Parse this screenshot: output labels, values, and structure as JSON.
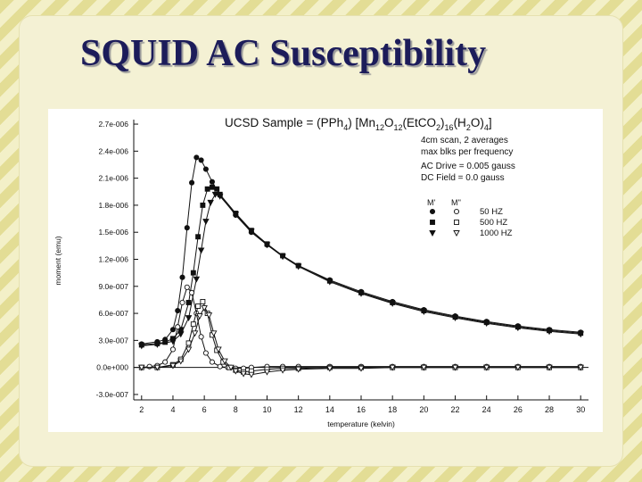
{
  "slide": {
    "title": "SQUID AC Susceptibility"
  },
  "chart_data": {
    "type": "line",
    "title": "UCSD Sample = (PPh4) [Mn12O12(EtCO2)16(H2O)4]",
    "title_parts": [
      "UCSD Sample = (PPh",
      "4",
      ") [Mn",
      "12",
      "O",
      "12",
      "(EtCO",
      "2",
      ")",
      "16",
      "(H",
      "2",
      "O)",
      "4",
      "]"
    ],
    "annotations": [
      "4cm scan, 2 averages",
      "max blks per frequency",
      "AC Drive = 0.005 gauss",
      "DC Field = 0.0 gauss"
    ],
    "legend_headers": [
      "M'",
      "M''"
    ],
    "legend_placement": "right",
    "xlabel": "temperature (kelvin)",
    "ylabel": "moment (emu)",
    "xlim": [
      1.5,
      30.5
    ],
    "ylim": [
      -3.6e-07,
      2.75e-06
    ],
    "x_ticks": [
      2,
      4,
      6,
      8,
      10,
      12,
      14,
      16,
      18,
      20,
      22,
      24,
      26,
      28,
      30
    ],
    "x_tick_labels": [
      "2",
      "4",
      "6",
      "8",
      "10",
      "12",
      "14",
      "16",
      "18",
      "20",
      "22",
      "24",
      "26",
      "28",
      "30"
    ],
    "y_ticks": [
      2.7e-06,
      2.4e-06,
      2.1e-06,
      1.8e-06,
      1.5e-06,
      1.2e-06,
      9e-07,
      6e-07,
      3e-07,
      0,
      -3e-07
    ],
    "y_tick_labels": [
      "2.7e-006",
      "2.4e-006",
      "2.1e-006",
      "1.8e-006",
      "1.5e-006",
      "1.2e-006",
      "9.0e-007",
      "6.0e-007",
      "3.0e-007",
      "0.0e+000",
      "-3.0e-007"
    ],
    "grid": false,
    "series": [
      {
        "name": "50 HZ",
        "component": "M'",
        "marker": "filled-circle",
        "x": [
          2,
          3,
          3.5,
          4,
          4.3,
          4.6,
          4.9,
          5.2,
          5.5,
          5.8,
          6.1,
          6.5,
          7,
          8,
          9,
          10,
          11,
          12,
          14,
          16,
          18,
          20,
          22,
          24,
          26,
          28,
          30
        ],
        "y": [
          2.6e-07,
          2.85e-07,
          3.1e-07,
          4.2e-07,
          6.3e-07,
          1e-06,
          1.55e-06,
          2.05e-06,
          2.33e-06,
          2.3e-06,
          2.2e-06,
          2.06e-06,
          1.91e-06,
          1.69e-06,
          1.5e-06,
          1.36e-06,
          1.24e-06,
          1.13e-06,
          9.7e-07,
          8.4e-07,
          7.3e-07,
          6.4e-07,
          5.7e-07,
          5.1e-07,
          4.6e-07,
          4.2e-07,
          3.9e-07
        ]
      },
      {
        "name": "500 HZ",
        "component": "M'",
        "marker": "filled-square",
        "x": [
          2,
          3,
          3.5,
          4,
          4.5,
          5,
          5.3,
          5.6,
          5.9,
          6.2,
          6.5,
          6.8,
          7,
          8,
          9,
          10,
          11,
          12,
          14,
          16,
          18,
          20,
          22,
          24,
          26,
          28,
          30
        ],
        "y": [
          2.5e-07,
          2.65e-07,
          2.8e-07,
          3.2e-07,
          4.2e-07,
          7.2e-07,
          1.05e-06,
          1.45e-06,
          1.8e-06,
          1.98e-06,
          2e-06,
          1.98e-06,
          1.92e-06,
          1.71e-06,
          1.52e-06,
          1.37e-06,
          1.24e-06,
          1.13e-06,
          9.6e-07,
          8.3e-07,
          7.2e-07,
          6.3e-07,
          5.6e-07,
          5e-07,
          4.5e-07,
          4.1e-07,
          3.8e-07
        ]
      },
      {
        "name": "1000 HZ",
        "component": "M'",
        "marker": "filled-triangle",
        "x": [
          2,
          3,
          4,
          4.5,
          5,
          5.5,
          5.8,
          6.1,
          6.4,
          6.7,
          7,
          8,
          9,
          10,
          11,
          12,
          14,
          16,
          18,
          20,
          22,
          24,
          26,
          28,
          30
        ],
        "y": [
          2.4e-07,
          2.55e-07,
          2.9e-07,
          3.7e-07,
          5.5e-07,
          9.8e-07,
          1.3e-06,
          1.62e-06,
          1.83e-06,
          1.92e-06,
          1.9e-06,
          1.7e-06,
          1.51e-06,
          1.36e-06,
          1.23e-06,
          1.12e-06,
          9.5e-07,
          8.2e-07,
          7.1e-07,
          6.2e-07,
          5.5e-07,
          4.9e-07,
          4.4e-07,
          4e-07,
          3.7e-07
        ]
      },
      {
        "name": "50 HZ",
        "component": "M''",
        "marker": "open-circle",
        "x": [
          2,
          2.5,
          3,
          3.5,
          4,
          4.3,
          4.6,
          4.9,
          5.2,
          5.5,
          5.8,
          6.1,
          6.5,
          7,
          7.5,
          8,
          8.5,
          9,
          10,
          11,
          12,
          14,
          16,
          18,
          20,
          22,
          24,
          26,
          28,
          30
        ],
        "y": [
          0,
          1e-08,
          2e-08,
          6e-08,
          2e-07,
          4.5e-07,
          7.2e-07,
          8.9e-07,
          8.3e-07,
          6e-07,
          3.4e-07,
          1.6e-07,
          6e-08,
          1e-08,
          0,
          -1e-08,
          -1e-08,
          0,
          1e-08,
          1e-08,
          1e-08,
          1e-08,
          1e-08,
          1e-08,
          1e-08,
          1e-08,
          1e-08,
          1e-08,
          1e-08,
          1e-08
        ]
      },
      {
        "name": "500 HZ",
        "component": "M''",
        "marker": "open-square",
        "x": [
          2,
          3,
          4,
          4.5,
          5,
          5.3,
          5.6,
          5.9,
          6.2,
          6.5,
          6.8,
          7.2,
          7.6,
          8,
          8.5,
          9,
          10,
          11,
          12,
          14,
          16,
          18,
          20,
          22,
          24,
          26,
          28,
          30
        ],
        "y": [
          0,
          0,
          3e-08,
          9e-08,
          2.7e-07,
          4.8e-07,
          6.8e-07,
          7.3e-07,
          6e-07,
          3.6e-07,
          1.9e-07,
          6e-08,
          0,
          -3e-08,
          -5e-08,
          -4e-08,
          -2e-08,
          -1e-08,
          -1e-08,
          0,
          0,
          0,
          0,
          0,
          0,
          0,
          0,
          0
        ]
      },
      {
        "name": "1000 HZ",
        "component": "M''",
        "marker": "open-triangle",
        "x": [
          2,
          3,
          4,
          4.5,
          5,
          5.4,
          5.7,
          6,
          6.3,
          6.6,
          6.9,
          7.3,
          7.7,
          8,
          8.5,
          9,
          10,
          11,
          12,
          14,
          16,
          18,
          20,
          22,
          24,
          26,
          28,
          30
        ],
        "y": [
          0,
          0,
          2e-08,
          7e-08,
          2e-07,
          3.8e-07,
          5.7e-07,
          6.6e-07,
          5.8e-07,
          3.8e-07,
          2e-07,
          7e-08,
          0,
          -4e-08,
          -7e-08,
          -8e-08,
          -5e-08,
          -3e-08,
          -2e-08,
          -1e-08,
          -1e-08,
          0,
          0,
          0,
          0,
          0,
          0,
          0
        ]
      }
    ]
  }
}
